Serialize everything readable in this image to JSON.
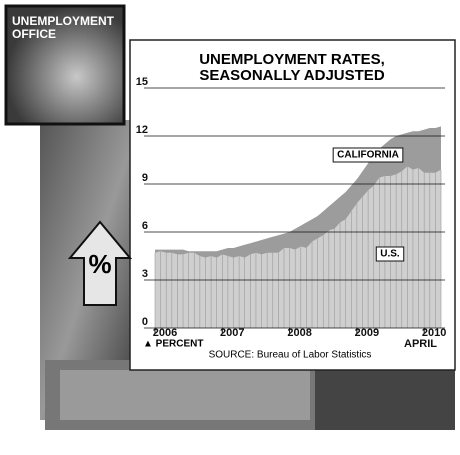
{
  "chart_data": {
    "type": "area",
    "title_lines": [
      "UNEMPLOYMENT RATES,",
      "SEASONALLY ADJUSTED"
    ],
    "badge_lines": [
      "UNEMPLOYMENT",
      "OFFICE"
    ],
    "arrow_label": "%",
    "y_axis_label": "▲ PERCENT",
    "source": "SOURCE: Bureau of Labor Statistics",
    "end_label": "APRIL",
    "categories": [
      "2006",
      null,
      null,
      null,
      null,
      null,
      null,
      null,
      null,
      null,
      null,
      null,
      "2007",
      null,
      null,
      null,
      null,
      null,
      null,
      null,
      null,
      null,
      null,
      null,
      "2008",
      null,
      null,
      null,
      null,
      null,
      null,
      null,
      null,
      null,
      null,
      null,
      "2009",
      null,
      null,
      null,
      null,
      null,
      null,
      null,
      null,
      null,
      null,
      null,
      "2010",
      null,
      null,
      null
    ],
    "series": [
      {
        "name": "CALIFORNIA",
        "color": "#9c9c9c",
        "values": [
          4.9,
          4.9,
          4.9,
          4.9,
          4.9,
          4.9,
          4.8,
          4.8,
          4.8,
          4.8,
          4.8,
          4.8,
          4.9,
          5.0,
          5.0,
          5.1,
          5.2,
          5.3,
          5.4,
          5.5,
          5.6,
          5.7,
          5.8,
          5.9,
          6.0,
          6.2,
          6.4,
          6.6,
          6.8,
          7.0,
          7.3,
          7.6,
          7.9,
          8.2,
          8.5,
          8.9,
          9.3,
          9.8,
          10.3,
          10.8,
          11.2,
          11.5,
          11.8,
          12.0,
          12.1,
          12.2,
          12.3,
          12.3,
          12.4,
          12.5,
          12.5,
          12.6
        ]
      },
      {
        "name": "U.S.",
        "color": "#cfcfcf",
        "values": [
          4.7,
          4.8,
          4.7,
          4.7,
          4.6,
          4.6,
          4.7,
          4.7,
          4.5,
          4.4,
          4.5,
          4.4,
          4.6,
          4.5,
          4.4,
          4.5,
          4.4,
          4.6,
          4.7,
          4.6,
          4.7,
          4.7,
          4.7,
          5.0,
          5.0,
          4.9,
          5.1,
          5.0,
          5.4,
          5.6,
          5.8,
          6.1,
          6.2,
          6.6,
          6.8,
          7.3,
          7.8,
          8.2,
          8.6,
          8.9,
          9.4,
          9.5,
          9.5,
          9.6,
          9.8,
          10.1,
          9.9,
          10.0,
          9.7,
          9.7,
          9.7,
          9.9
        ]
      }
    ],
    "ylim": [
      0,
      15
    ],
    "yticks": [
      0,
      3,
      6,
      9,
      12,
      15
    ],
    "grid": true
  }
}
